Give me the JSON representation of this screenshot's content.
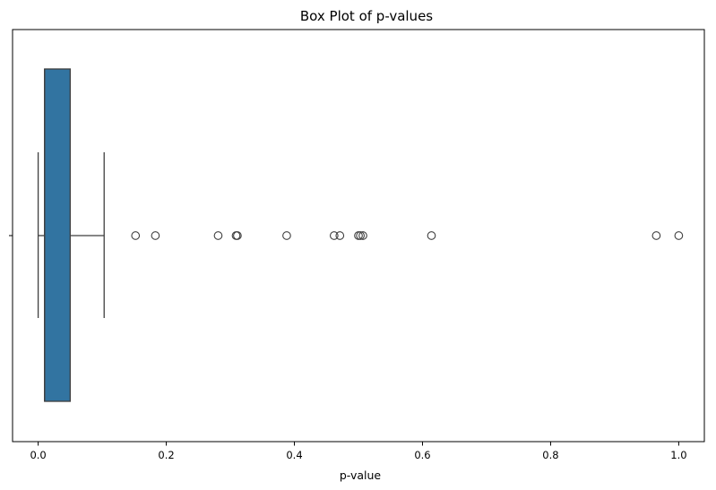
{
  "chart_data": {
    "type": "box",
    "title": "Box Plot of p-values",
    "xlabel": "p-value",
    "ylabel": "",
    "xlim": [
      -0.04,
      1.04
    ],
    "xticks": [
      0.0,
      0.2,
      0.4,
      0.6,
      0.8,
      1.0
    ],
    "xtick_labels": [
      "0.0",
      "0.2",
      "0.4",
      "0.6",
      "0.8",
      "1.0"
    ],
    "orientation": "horizontal",
    "grid": false,
    "box": {
      "whisker_low": 0.0,
      "q1": 0.01,
      "median": 0.01,
      "q3": 0.05,
      "whisker_high": 0.103
    },
    "outliers": [
      0.152,
      0.183,
      0.281,
      0.309,
      0.311,
      0.388,
      0.462,
      0.471,
      0.5,
      0.503,
      0.507,
      0.614,
      0.965,
      1.0
    ],
    "colors": {
      "box_fill": "#3274a1",
      "line": "#3f3f3f",
      "axis": "#000000"
    }
  }
}
